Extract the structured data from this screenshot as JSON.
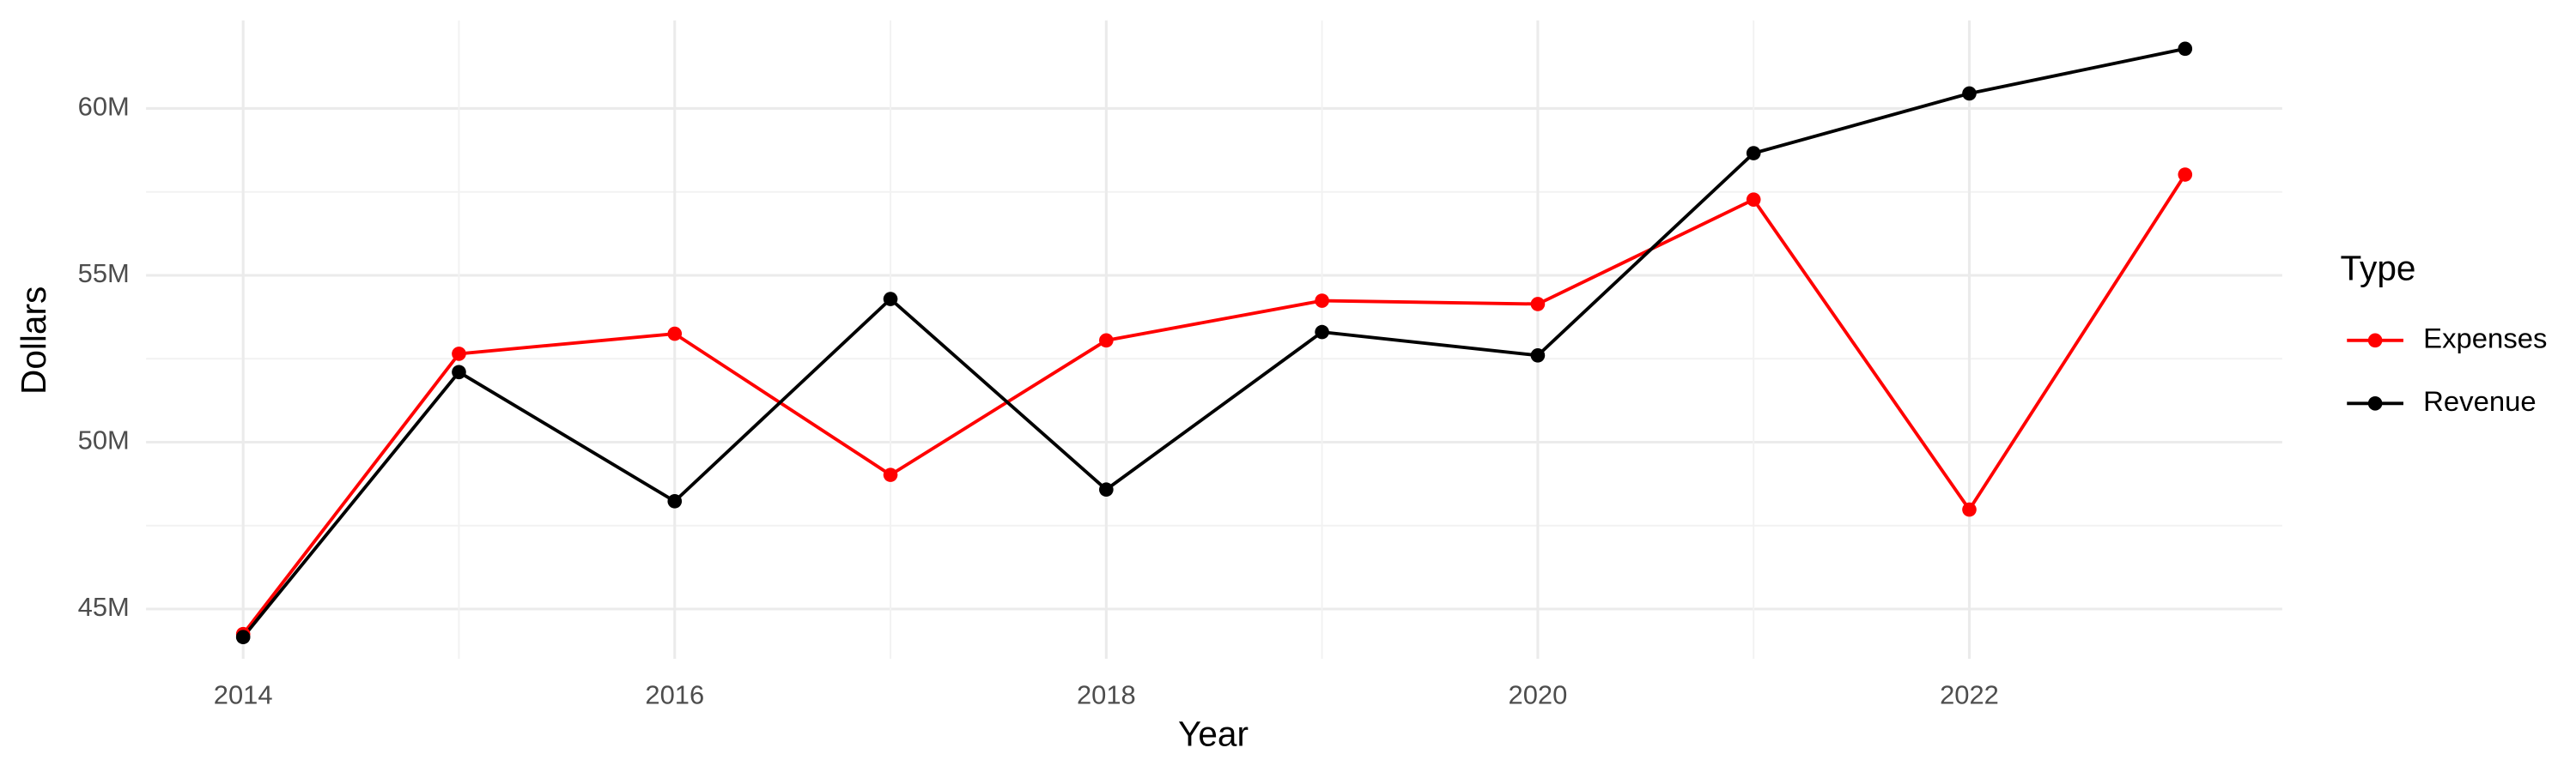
{
  "chart_data": {
    "type": "line",
    "x_label": "Year",
    "y_label": "Dollars",
    "x": [
      2014,
      2015,
      2016,
      2017,
      2018,
      2019,
      2020,
      2021,
      2022,
      2023
    ],
    "series": [
      {
        "name": "Expenses",
        "color": "#ff0000",
        "values": [
          44250000,
          52650000,
          53250000,
          49020000,
          53050000,
          54240000,
          54140000,
          57270000,
          47980000,
          58020000
        ]
      },
      {
        "name": "Revenue",
        "color": "#000000",
        "values": [
          44160000,
          52100000,
          48230000,
          54290000,
          48580000,
          53300000,
          52600000,
          58660000,
          60450000,
          61790000
        ]
      }
    ],
    "xlim": [
      2013.55,
      2023.45
    ],
    "ylim": [
      43510000,
      62640000
    ],
    "xticks": [
      2014,
      2016,
      2018,
      2020,
      2022
    ],
    "yticks": [
      {
        "value": 45000000,
        "label": "45M"
      },
      {
        "value": 50000000,
        "label": "50M"
      },
      {
        "value": 55000000,
        "label": "55M"
      },
      {
        "value": 60000000,
        "label": "60M"
      }
    ],
    "grid": true,
    "legend": {
      "title": "Type",
      "position": "right"
    }
  }
}
